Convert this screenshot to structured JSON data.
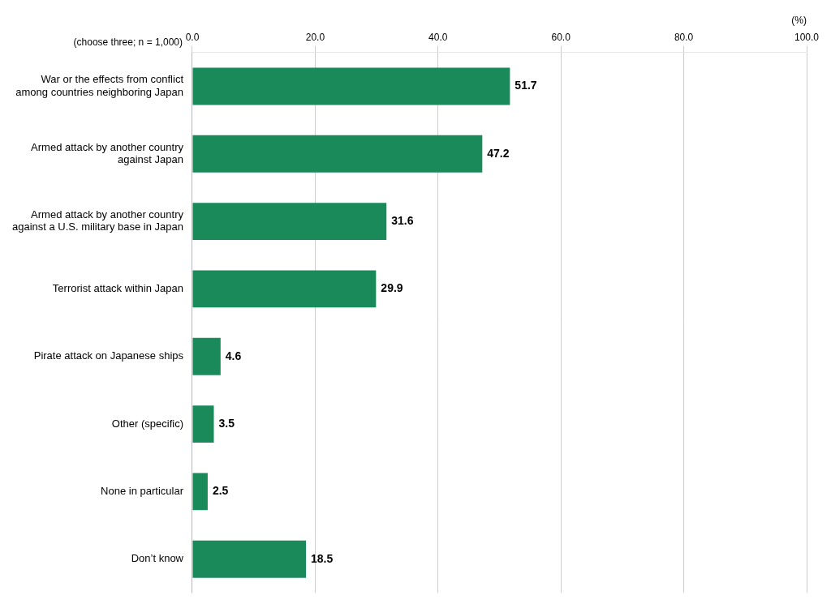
{
  "chart_data": {
    "type": "bar",
    "orientation": "horizontal",
    "categories": [
      "War or the effects from conflict\namong countries neighboring Japan",
      "Armed attack by another country\nagainst Japan",
      "Armed attack by another country\nagainst a U.S. military base in Japan",
      "Terrorist attack within Japan",
      "Pirate attack on Japanese ships",
      "Other (specific)",
      "None in particular",
      "Don’t know"
    ],
    "values": [
      51.7,
      47.2,
      31.6,
      29.9,
      4.6,
      3.5,
      2.5,
      18.5
    ],
    "color": "#1a8a5a",
    "xlabel": "(%)",
    "annotations": [
      "(choose three; n = 1,000)"
    ],
    "xlim": [
      0,
      100
    ],
    "xticks": [
      {
        "value": 0,
        "label": "0.0"
      },
      {
        "value": 20,
        "label": "20.0"
      },
      {
        "value": 40,
        "label": "40.0"
      },
      {
        "value": 60,
        "label": "60.0"
      },
      {
        "value": 80,
        "label": "80.0"
      },
      {
        "value": 100,
        "label": "100.0"
      }
    ],
    "grid": true,
    "data_labels": true
  }
}
